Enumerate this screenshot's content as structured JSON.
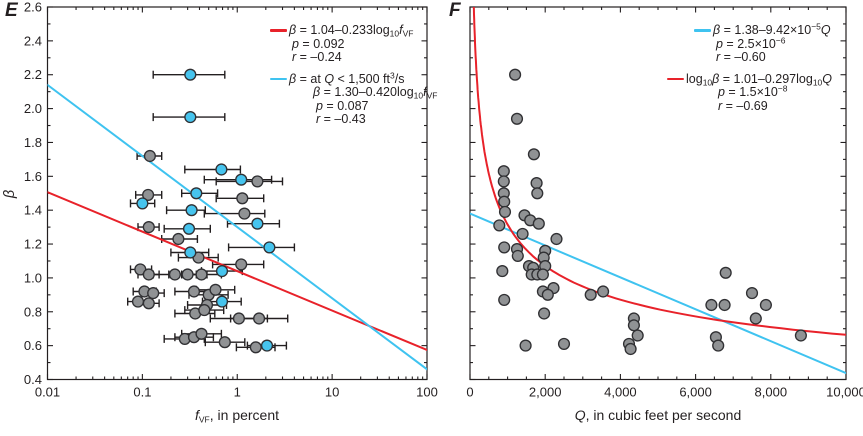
{
  "colors": {
    "axis_ink": "#231f20",
    "red_fit": "#e8222a",
    "cyan_fit": "#3fc3f0",
    "gray_marker": "#909294",
    "cyan_marker": "#46c4ee",
    "marker_outline": "#303033"
  },
  "chart_data": [
    {
      "type": "scatter",
      "panel_label": "E",
      "x_axis": {
        "scale": "log",
        "min": 0.01,
        "max": 100,
        "ticks": [
          0.01,
          0.1,
          1,
          10,
          100
        ],
        "tick_labels": [
          "0.01",
          "0.1",
          "1",
          "10",
          "100"
        ],
        "title_segs": [
          {
            "t": "f",
            "i": true
          },
          {
            "t": "VF",
            "sub": true
          },
          {
            "t": ", in percent"
          }
        ]
      },
      "y_axis": {
        "scale": "linear",
        "min": 0.4,
        "max": 2.6,
        "major_step": 0.2,
        "minor_step": 0.1,
        "tick_labels": [
          "0.4",
          "0.6",
          "0.8",
          "1.0",
          "1.2",
          "1.4",
          "1.6",
          "1.8",
          "2.0",
          "2.2",
          "2.4",
          "2.6"
        ],
        "title_segs": [
          {
            "t": "β",
            "i": true
          }
        ]
      },
      "series": [
        {
          "name": "all-sites",
          "marker": "circle",
          "color": "#909294",
          "points": [
            [
              0.12,
              1.72,
              0.088,
              0.16
            ],
            [
              1.63,
              1.57,
              0.6,
              3.0
            ],
            [
              0.115,
              1.49,
              0.085,
              0.16
            ],
            [
              1.13,
              1.47,
              0.6,
              1.9
            ],
            [
              1.19,
              1.38,
              0.45,
              1.95
            ],
            [
              0.117,
              1.3,
              0.09,
              0.15
            ],
            [
              0.24,
              1.23,
              0.16,
              0.38
            ],
            [
              0.39,
              1.12,
              0.24,
              0.63
            ],
            [
              1.1,
              1.08,
              0.55,
              1.9
            ],
            [
              0.095,
              1.05,
              0.075,
              0.125
            ],
            [
              0.117,
              1.02,
              0.09,
              0.15
            ],
            [
              0.22,
              1.02,
              0.13,
              0.37
            ],
            [
              0.3,
              1.02,
              0.19,
              0.48
            ],
            [
              0.42,
              1.02,
              0.26,
              0.68
            ],
            [
              0.105,
              0.92,
              0.08,
              0.14
            ],
            [
              0.13,
              0.91,
              0.1,
              0.17
            ],
            [
              0.35,
              0.92,
              0.22,
              0.56
            ],
            [
              0.5,
              0.9,
              0.31,
              0.8
            ],
            [
              0.59,
              0.93,
              0.37,
              0.94
            ],
            [
              0.09,
              0.86,
              0.07,
              0.12
            ],
            [
              0.117,
              0.85,
              0.09,
              0.15
            ],
            [
              0.48,
              0.84,
              0.3,
              0.77
            ],
            [
              0.36,
              0.79,
              0.22,
              0.58
            ],
            [
              0.45,
              0.81,
              0.28,
              0.72
            ],
            [
              1.04,
              0.76,
              0.52,
              2.08
            ],
            [
              1.7,
              0.76,
              0.85,
              3.4
            ],
            [
              0.28,
              0.64,
              0.17,
              0.45
            ],
            [
              0.35,
              0.65,
              0.22,
              0.56
            ],
            [
              0.42,
              0.67,
              0.26,
              0.68
            ],
            [
              0.74,
              0.62,
              0.46,
              1.2
            ],
            [
              1.57,
              0.59,
              0.98,
              2.5
            ]
          ]
        },
        {
          "name": "sites-Q-lt-1500",
          "marker": "circle",
          "color": "#46c4ee",
          "points": [
            [
              0.32,
              2.2,
              0.13,
              0.74
            ],
            [
              0.32,
              1.95,
              0.13,
              0.74
            ],
            [
              0.68,
              1.64,
              0.28,
              1.08
            ],
            [
              1.1,
              1.58,
              0.45,
              2.3
            ],
            [
              0.37,
              1.5,
              0.26,
              0.62
            ],
            [
              0.1,
              1.44,
              0.075,
              0.135
            ],
            [
              0.33,
              1.4,
              0.18,
              0.46
            ],
            [
              1.63,
              1.32,
              0.79,
              2.78
            ],
            [
              0.31,
              1.29,
              0.17,
              0.52
            ],
            [
              2.18,
              1.18,
              0.81,
              4.0
            ],
            [
              0.32,
              1.15,
              0.2,
              0.5
            ],
            [
              0.69,
              1.04,
              0.42,
              1.13
            ],
            [
              0.69,
              0.86,
              0.43,
              1.1
            ],
            [
              2.06,
              0.6,
              1.28,
              3.3
            ]
          ]
        }
      ],
      "fits": [
        {
          "name": "all-sites-fit",
          "model": "semilog10",
          "intercept": 1.04,
          "slope": -0.233,
          "color": "#e8222a",
          "equation": "β = 1.04 − 0.233 log10 fVF",
          "p": "0.092",
          "r": "−0.24"
        },
        {
          "name": "low-flow-fit",
          "model": "semilog10",
          "intercept": 1.3,
          "slope": -0.42,
          "color": "#3fc3f0",
          "equation": "β = 1.30 − 0.420 log10 fVF (at Q < 1,500 ft3/s)",
          "p": "0.087",
          "r": "−0.43"
        }
      ],
      "legend_rows": [
        {
          "swatch": "#e8222a",
          "segs": [
            {
              "t": "β",
              "i": true
            },
            {
              "t": " = 1.04–0.233log"
            },
            {
              "t": "10",
              "sub": true
            },
            {
              "t": "f",
              "i": true
            },
            {
              "t": "VF",
              "sub": true
            }
          ]
        },
        {
          "swatch": null,
          "segs": [
            {
              "t": "p",
              "i": true
            },
            {
              "t": " = 0.092"
            }
          ]
        },
        {
          "swatch": null,
          "segs": [
            {
              "t": "r",
              "i": true
            },
            {
              "t": " = –0.24"
            }
          ]
        },
        {
          "swatch": "#3fc3f0",
          "segs": [
            {
              "t": "β",
              "i": true
            },
            {
              "t": " = at "
            },
            {
              "t": "Q",
              "i": true
            },
            {
              "t": " < 1,500 ft"
            },
            {
              "t": "3",
              "sup": true
            },
            {
              "t": "/s"
            }
          ]
        },
        {
          "swatch": null,
          "segs": [
            {
              "t": "β",
              "i": true
            },
            {
              "t": " = 1.30–0.420log"
            },
            {
              "t": "10",
              "sub": true
            },
            {
              "t": "f",
              "i": true
            },
            {
              "t": "VF",
              "sub": true
            }
          ]
        },
        {
          "swatch": null,
          "segs": [
            {
              "t": "p",
              "i": true
            },
            {
              "t": " = 0.087"
            }
          ]
        },
        {
          "swatch": null,
          "segs": [
            {
              "t": "r",
              "i": true
            },
            {
              "t": " = –0.43"
            }
          ]
        }
      ]
    },
    {
      "type": "scatter",
      "panel_label": "F",
      "x_axis": {
        "scale": "linear",
        "min": 0,
        "max": 10000,
        "ticks": [
          0,
          2000,
          4000,
          6000,
          8000,
          10000
        ],
        "tick_labels": [
          "0",
          "2,000",
          "4,000",
          "6,000",
          "8,000",
          "10,000"
        ],
        "title_segs": [
          {
            "t": "Q",
            "i": true
          },
          {
            "t": ", in cubic feet per second"
          }
        ]
      },
      "y_axis": {
        "scale": "linear",
        "min": 0.4,
        "max": 2.6,
        "major_step": 0.2,
        "minor_step": 0.1,
        "tick_labels": [],
        "title_segs": []
      },
      "series": [
        {
          "name": "all-sites",
          "marker": "circle",
          "color": "#909294",
          "points": [
            [
              1200,
              2.2
            ],
            [
              1250,
              1.94
            ],
            [
              1700,
              1.73
            ],
            [
              900,
              1.63
            ],
            [
              1770,
              1.56
            ],
            [
              900,
              1.57
            ],
            [
              900,
              1.5
            ],
            [
              1790,
              1.5
            ],
            [
              910,
              1.45
            ],
            [
              930,
              1.39
            ],
            [
              1450,
              1.37
            ],
            [
              1600,
              1.34
            ],
            [
              1830,
              1.32
            ],
            [
              780,
              1.31
            ],
            [
              1400,
              1.26
            ],
            [
              2300,
              1.23
            ],
            [
              910,
              1.18
            ],
            [
              1250,
              1.17
            ],
            [
              2000,
              1.16
            ],
            [
              1270,
              1.13
            ],
            [
              1960,
              1.12
            ],
            [
              1570,
              1.07
            ],
            [
              2000,
              1.07
            ],
            [
              1680,
              1.06
            ],
            [
              860,
              1.04
            ],
            [
              6800,
              1.03
            ],
            [
              1640,
              1.02
            ],
            [
              1790,
              1.02
            ],
            [
              1940,
              1.02
            ],
            [
              2220,
              0.94
            ],
            [
              1940,
              0.92
            ],
            [
              3540,
              0.92
            ],
            [
              7500,
              0.91
            ],
            [
              2070,
              0.9
            ],
            [
              3210,
              0.9
            ],
            [
              910,
              0.87
            ],
            [
              6420,
              0.84
            ],
            [
              6770,
              0.84
            ],
            [
              7870,
              0.84
            ],
            [
              1970,
              0.79
            ],
            [
              4360,
              0.76
            ],
            [
              7600,
              0.76
            ],
            [
              4360,
              0.72
            ],
            [
              4460,
              0.66
            ],
            [
              8800,
              0.66
            ],
            [
              6540,
              0.65
            ],
            [
              4230,
              0.61
            ],
            [
              2500,
              0.61
            ],
            [
              4270,
              0.58
            ],
            [
              6600,
              0.6
            ],
            [
              1480,
              0.6
            ]
          ]
        }
      ],
      "fits": [
        {
          "name": "linear-fit",
          "model": "linear",
          "intercept": 1.38,
          "slope": -9.42e-05,
          "color": "#3fc3f0",
          "equation": "β = 1.38 − 9.42×10^−5 Q",
          "p": "2.5×10^−6",
          "r": "−0.60"
        },
        {
          "name": "loglog-fit",
          "model": "loglog",
          "intercept": 1.01,
          "slope": -0.297,
          "color": "#e8222a",
          "equation": "log10 β = 1.01 − 0.297 log10 Q",
          "p": "1.5×10^−8",
          "r": "−0.69"
        }
      ],
      "legend_rows": [
        {
          "swatch": "#3fc3f0",
          "segs": [
            {
              "t": "β",
              "i": true
            },
            {
              "t": " = 1.38–9.42×10"
            },
            {
              "t": "−5",
              "sup": true
            },
            {
              "t": "Q",
              "i": true
            }
          ]
        },
        {
          "swatch": null,
          "segs": [
            {
              "t": "p",
              "i": true
            },
            {
              "t": " = 2.5×10"
            },
            {
              "t": "−6",
              "sup": true
            }
          ]
        },
        {
          "swatch": null,
          "segs": [
            {
              "t": "r",
              "i": true
            },
            {
              "t": " = –0.60"
            }
          ]
        },
        {
          "swatch": "#e8222a",
          "segs": [
            {
              "t": "log"
            },
            {
              "t": "10",
              "sub": true
            },
            {
              "t": "β",
              "i": true
            },
            {
              "t": " = 1.01–0.297log"
            },
            {
              "t": "10",
              "sub": true
            },
            {
              "t": "Q",
              "i": true
            }
          ]
        },
        {
          "swatch": null,
          "segs": [
            {
              "t": "p",
              "i": true
            },
            {
              "t": " = 1.5×10"
            },
            {
              "t": "−8",
              "sup": true
            }
          ]
        },
        {
          "swatch": null,
          "segs": [
            {
              "t": "r",
              "i": true
            },
            {
              "t": " = –0.69"
            }
          ]
        }
      ]
    }
  ]
}
